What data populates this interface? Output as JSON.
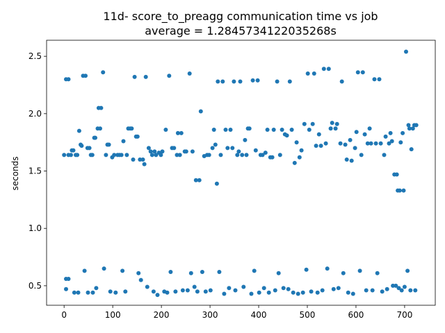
{
  "colors": {
    "marker": "#1f77b4",
    "axes": "#000000",
    "background": "#ffffff"
  },
  "chart_data": {
    "type": "scatter",
    "title": "11d- score_to_preagg communication time vs job",
    "subtitle": "average = 1.2845734122035268s",
    "xlabel": "",
    "ylabel": "seconds",
    "xlim": [
      -36,
      763
    ],
    "ylim": [
      0.33,
      2.64
    ],
    "grid": false,
    "legend": "none",
    "xticks": [
      0,
      100,
      200,
      300,
      400,
      500,
      600,
      700
    ],
    "yticks": [
      0.5,
      1.0,
      1.5,
      2.0,
      2.5
    ],
    "xtick_labels": [
      "0",
      "100",
      "200",
      "300",
      "400",
      "500",
      "600",
      "700"
    ],
    "ytick_labels": [
      "0.5",
      "1.0",
      "1.5",
      "2.0",
      "2.5"
    ],
    "series": [
      {
        "marker": "circle",
        "points": [
          [
            0,
            1.64
          ],
          [
            4,
            2.3
          ],
          [
            4,
            0.56
          ],
          [
            4,
            0.47
          ],
          [
            9,
            1.64
          ],
          [
            9,
            0.56
          ],
          [
            9,
            2.3
          ],
          [
            14,
            1.64
          ],
          [
            16,
            1.68
          ],
          [
            19,
            1.68
          ],
          [
            21,
            0.44
          ],
          [
            24,
            1.64
          ],
          [
            27,
            1.64
          ],
          [
            29,
            0.44
          ],
          [
            31,
            1.85
          ],
          [
            34,
            1.73
          ],
          [
            36,
            1.72
          ],
          [
            39,
            2.33
          ],
          [
            42,
            0.63
          ],
          [
            44,
            2.33
          ],
          [
            48,
            1.7
          ],
          [
            49,
            0.44
          ],
          [
            52,
            1.7
          ],
          [
            55,
            1.64
          ],
          [
            58,
            1.64
          ],
          [
            59,
            0.44
          ],
          [
            62,
            1.79
          ],
          [
            64,
            1.79
          ],
          [
            66,
            0.48
          ],
          [
            69,
            1.87
          ],
          [
            71,
            2.05
          ],
          [
            74,
            1.87
          ],
          [
            76,
            2.05
          ],
          [
            80,
            2.36
          ],
          [
            82,
            0.65
          ],
          [
            86,
            1.64
          ],
          [
            89,
            1.73
          ],
          [
            92,
            1.73
          ],
          [
            95,
            0.45
          ],
          [
            99,
            1.62
          ],
          [
            103,
            1.64
          ],
          [
            106,
            0.44
          ],
          [
            110,
            1.64
          ],
          [
            114,
            1.64
          ],
          [
            118,
            1.64
          ],
          [
            120,
            0.63
          ],
          [
            122,
            1.76
          ],
          [
            126,
            0.45
          ],
          [
            129,
            1.64
          ],
          [
            132,
            1.87
          ],
          [
            136,
            1.87
          ],
          [
            139,
            1.87
          ],
          [
            142,
            1.6
          ],
          [
            145,
            2.32
          ],
          [
            148,
            1.8
          ],
          [
            151,
            1.8
          ],
          [
            153,
            0.61
          ],
          [
            156,
            1.6
          ],
          [
            158,
            0.55
          ],
          [
            162,
            1.6
          ],
          [
            165,
            1.56
          ],
          [
            168,
            2.32
          ],
          [
            171,
            0.49
          ],
          [
            174,
            1.7
          ],
          [
            178,
            1.67
          ],
          [
            181,
            1.64
          ],
          [
            184,
            0.45
          ],
          [
            186,
            1.67
          ],
          [
            189,
            1.64
          ],
          [
            192,
            0.42
          ],
          [
            195,
            1.66
          ],
          [
            199,
            1.64
          ],
          [
            202,
            1.67
          ],
          [
            206,
            0.45
          ],
          [
            209,
            1.86
          ],
          [
            212,
            0.44
          ],
          [
            216,
            2.33
          ],
          [
            219,
            0.62
          ],
          [
            222,
            1.7
          ],
          [
            226,
            1.7
          ],
          [
            229,
            0.45
          ],
          [
            232,
            1.64
          ],
          [
            234,
            1.83
          ],
          [
            238,
            1.64
          ],
          [
            241,
            1.83
          ],
          [
            244,
            0.46
          ],
          [
            248,
            1.67
          ],
          [
            251,
            1.67
          ],
          [
            254,
            0.46
          ],
          [
            258,
            2.35
          ],
          [
            261,
            0.61
          ],
          [
            264,
            1.67
          ],
          [
            268,
            0.49
          ],
          [
            271,
            1.42
          ],
          [
            274,
            0.45
          ],
          [
            278,
            1.42
          ],
          [
            281,
            2.02
          ],
          [
            284,
            0.62
          ],
          [
            288,
            1.63
          ],
          [
            291,
            0.45
          ],
          [
            294,
            1.64
          ],
          [
            298,
            1.64
          ],
          [
            301,
            0.46
          ],
          [
            305,
            1.7
          ],
          [
            308,
            1.86
          ],
          [
            311,
            1.73
          ],
          [
            314,
            1.39
          ],
          [
            316,
            2.28
          ],
          [
            319,
            0.62
          ],
          [
            322,
            1.64
          ],
          [
            326,
            2.28
          ],
          [
            329,
            0.43
          ],
          [
            332,
            1.86
          ],
          [
            336,
            1.7
          ],
          [
            339,
            0.48
          ],
          [
            342,
            1.86
          ],
          [
            346,
            1.7
          ],
          [
            349,
            2.28
          ],
          [
            352,
            0.46
          ],
          [
            356,
            1.64
          ],
          [
            359,
            1.67
          ],
          [
            362,
            2.28
          ],
          [
            366,
            1.64
          ],
          [
            369,
            0.49
          ],
          [
            372,
            1.77
          ],
          [
            375,
            1.64
          ],
          [
            378,
            1.87
          ],
          [
            381,
            1.87
          ],
          [
            385,
            0.43
          ],
          [
            388,
            2.29
          ],
          [
            391,
            0.63
          ],
          [
            394,
            1.68
          ],
          [
            398,
            2.29
          ],
          [
            401,
            0.44
          ],
          [
            404,
            1.64
          ],
          [
            408,
            1.64
          ],
          [
            411,
            0.48
          ],
          [
            414,
            1.66
          ],
          [
            418,
            1.86
          ],
          [
            421,
            0.44
          ],
          [
            424,
            1.62
          ],
          [
            428,
            1.62
          ],
          [
            431,
            1.86
          ],
          [
            434,
            0.46
          ],
          [
            438,
            2.28
          ],
          [
            441,
            0.61
          ],
          [
            444,
            1.64
          ],
          [
            448,
            1.86
          ],
          [
            451,
            0.48
          ],
          [
            454,
            1.82
          ],
          [
            458,
            1.81
          ],
          [
            461,
            0.47
          ],
          [
            464,
            2.28
          ],
          [
            468,
            1.86
          ],
          [
            471,
            0.44
          ],
          [
            474,
            1.57
          ],
          [
            478,
            1.75
          ],
          [
            481,
            0.43
          ],
          [
            484,
            1.62
          ],
          [
            488,
            1.68
          ],
          [
            491,
            0.44
          ],
          [
            494,
            1.91
          ],
          [
            498,
            0.64
          ],
          [
            501,
            2.35
          ],
          [
            504,
            1.86
          ],
          [
            508,
            0.45
          ],
          [
            511,
            1.91
          ],
          [
            514,
            2.35
          ],
          [
            518,
            1.72
          ],
          [
            521,
            0.44
          ],
          [
            524,
            1.82
          ],
          [
            528,
            1.72
          ],
          [
            531,
            0.46
          ],
          [
            534,
            2.39
          ],
          [
            538,
            1.74
          ],
          [
            541,
            0.65
          ],
          [
            544,
            2.39
          ],
          [
            548,
            1.87
          ],
          [
            551,
            1.92
          ],
          [
            554,
            0.47
          ],
          [
            558,
            1.87
          ],
          [
            561,
            1.91
          ],
          [
            564,
            0.48
          ],
          [
            568,
            1.74
          ],
          [
            571,
            2.28
          ],
          [
            574,
            0.61
          ],
          [
            578,
            1.73
          ],
          [
            581,
            1.6
          ],
          [
            584,
            0.44
          ],
          [
            588,
            1.77
          ],
          [
            591,
            1.59
          ],
          [
            594,
            0.43
          ],
          [
            598,
            1.7
          ],
          [
            601,
            1.84
          ],
          [
            604,
            2.36
          ],
          [
            608,
            0.63
          ],
          [
            611,
            1.64
          ],
          [
            614,
            2.36
          ],
          [
            618,
            1.82
          ],
          [
            621,
            0.46
          ],
          [
            624,
            1.74
          ],
          [
            628,
            1.87
          ],
          [
            631,
            1.74
          ],
          [
            634,
            0.46
          ],
          [
            638,
            2.3
          ],
          [
            641,
            1.74
          ],
          [
            644,
            0.61
          ],
          [
            648,
            2.3
          ],
          [
            651,
            1.74
          ],
          [
            654,
            0.45
          ],
          [
            658,
            1.64
          ],
          [
            661,
            1.8
          ],
          [
            664,
            0.47
          ],
          [
            668,
            1.74
          ],
          [
            671,
            1.83
          ],
          [
            674,
            1.76
          ],
          [
            676,
            0.5
          ],
          [
            679,
            1.47
          ],
          [
            682,
            0.5
          ],
          [
            684,
            1.47
          ],
          [
            686,
            1.33
          ],
          [
            688,
            0.48
          ],
          [
            690,
            1.33
          ],
          [
            692,
            1.75
          ],
          [
            694,
            0.46
          ],
          [
            696,
            1.83
          ],
          [
            698,
            1.33
          ],
          [
            700,
            0.49
          ],
          [
            703,
            2.54
          ],
          [
            706,
            0.63
          ],
          [
            708,
            1.9
          ],
          [
            710,
            1.87
          ],
          [
            712,
            0.46
          ],
          [
            714,
            1.69
          ],
          [
            717,
            1.87
          ],
          [
            720,
            1.9
          ],
          [
            722,
            0.46
          ],
          [
            724,
            1.9
          ]
        ]
      }
    ]
  }
}
